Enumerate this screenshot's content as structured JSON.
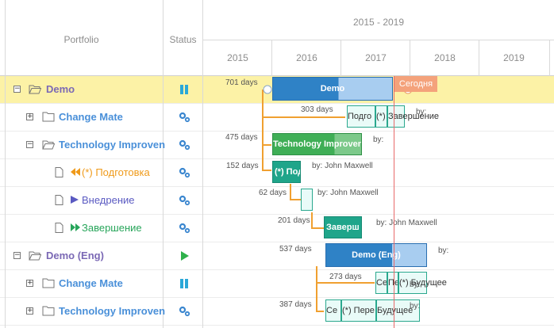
{
  "header": {
    "portfolio_label": "Portfolio",
    "status_label": "Status",
    "range_label": "2015 - 2019",
    "years": [
      "2015",
      "2016",
      "2017",
      "2018",
      "2019"
    ]
  },
  "rows": [
    {
      "name": "Demo",
      "toggle": "−",
      "days": "701 days"
    },
    {
      "name": "Change Mate",
      "toggle": "+",
      "days": "303 days",
      "by": "by:"
    },
    {
      "name": "Technology Improven",
      "toggle": "−",
      "days": "475 days",
      "by": "by:"
    },
    {
      "name": "(*) Подготовка",
      "days": "152 days",
      "by": "by: John Maxwell"
    },
    {
      "name": "Внедрение",
      "days": "62 days",
      "by": "by: John Maxwell"
    },
    {
      "name": "Завершение",
      "days": "201 days",
      "by": "by: John Maxwell"
    },
    {
      "name": "Demo (Eng)",
      "toggle": "−",
      "days": "537 days",
      "by": "by:"
    },
    {
      "name": "Change Mate",
      "toggle": "+",
      "days": "273 days",
      "by": "by:"
    },
    {
      "name": "Technology Improven",
      "toggle": "+",
      "days": "387 days",
      "by": "by:"
    }
  ],
  "bars": {
    "demo": "Demo",
    "change_mate_segments": [
      "Подго",
      "(*)",
      "Завершение"
    ],
    "tech": "Technology Improven",
    "prep": "(*) Под",
    "finish": "Заверш",
    "demo_eng": "Demo (Eng)",
    "cm_eng_segments": [
      "Се",
      "Пе",
      "(*) Будущее"
    ],
    "ti_eng_segments": [
      "Се",
      "(*) Пере",
      "Будущее"
    ]
  },
  "today_label": "Сегодня",
  "colors": {
    "highlight": "#fcf2a6",
    "blue_bar": "#2f82c6",
    "green_bar": "#3fae56",
    "teal_bar": "#1fa58a",
    "today": "#e86a6a",
    "connector": "#f0a030"
  },
  "icons": {
    "status_paused": "pause-icon",
    "status_settings": "gears-icon",
    "status_running": "play-icon"
  }
}
